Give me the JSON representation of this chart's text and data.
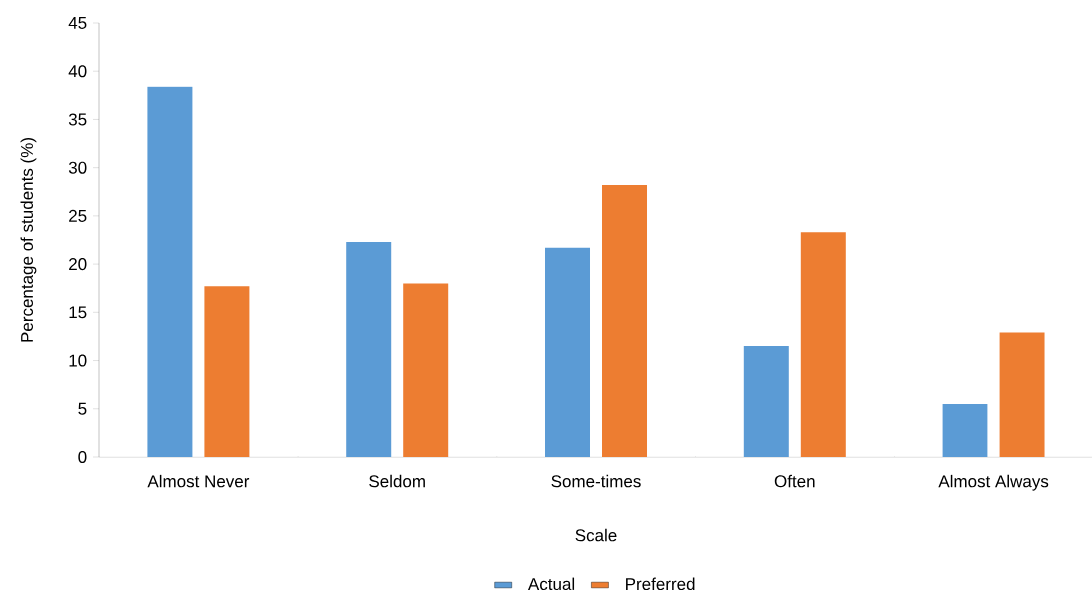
{
  "chart_data": {
    "type": "bar",
    "xlabel": "Scale",
    "ylabel": "Percentage of students  (%)",
    "categories": [
      "Almost Never",
      "Seldom",
      "Some-times",
      "Often",
      "Almost Always"
    ],
    "series": [
      {
        "name": "Actual",
        "color": "#5b9bd5",
        "values": [
          38.4,
          22.3,
          21.7,
          11.5,
          5.5
        ]
      },
      {
        "name": "Preferred",
        "color": "#ed7d31",
        "values": [
          17.7,
          18.0,
          28.2,
          23.3,
          12.9
        ]
      }
    ],
    "ylim": [
      0,
      45
    ],
    "yticks": [
      0,
      5,
      10,
      15,
      20,
      25,
      30,
      35,
      40,
      45
    ],
    "grid": false,
    "legend": "bottom"
  }
}
